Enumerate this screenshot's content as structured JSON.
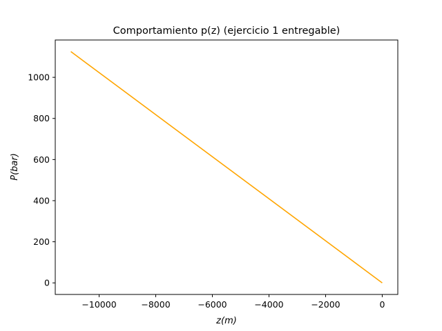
{
  "chart_data": {
    "type": "line",
    "title": "Comportamiento p(z) (ejercicio 1 entregable)",
    "xlabel": "z(m)",
    "ylabel": "P(bar)",
    "xlim": [
      -11550,
      550
    ],
    "ylim": [
      -56.3,
      1181.6
    ],
    "x_ticks": [
      -10000,
      -8000,
      -6000,
      -4000,
      -2000,
      0
    ],
    "x_tick_labels": [
      "−10000",
      "−8000",
      "−6000",
      "−4000",
      "−2000",
      "0"
    ],
    "y_ticks": [
      0,
      200,
      400,
      600,
      800,
      1000
    ],
    "y_tick_labels": [
      "0",
      "200",
      "400",
      "600",
      "800",
      "1000"
    ],
    "grid": false,
    "series": [
      {
        "color": "#ffa500",
        "x": [
          -11000,
          0
        ],
        "y": [
          1125.3,
          0
        ]
      }
    ]
  }
}
